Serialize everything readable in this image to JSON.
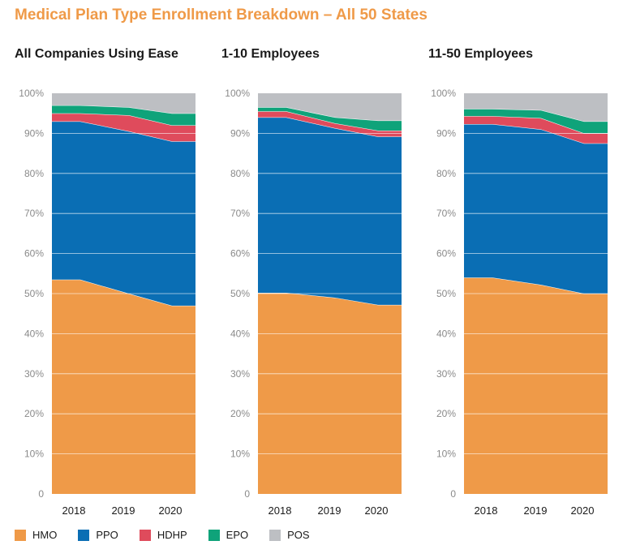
{
  "title": "Medical Plan Type Enrollment Breakdown – All 50 States",
  "series_colors": {
    "HMO": "#EF9A48",
    "PPO": "#0A6EB4",
    "HDHP": "#DF4B5C",
    "EPO": "#0FA37A",
    "POS": "#BDBFC3"
  },
  "chart_data": [
    {
      "type": "area",
      "title": "All Companies Using Ease",
      "x": [
        "2018",
        "2019",
        "2020"
      ],
      "ylim": [
        0,
        100
      ],
      "yticks": [
        "0",
        "10%",
        "20%",
        "30%",
        "40%",
        "50%",
        "60%",
        "70%",
        "80%",
        "90%",
        "100%"
      ],
      "stacked": true,
      "series": [
        {
          "name": "HMO",
          "values": [
            53.5,
            50.0,
            47.0
          ]
        },
        {
          "name": "PPO",
          "values": [
            39.5,
            40.5,
            41.0
          ]
        },
        {
          "name": "HDHP",
          "values": [
            2.0,
            4.0,
            4.0
          ]
        },
        {
          "name": "EPO",
          "values": [
            2.0,
            2.0,
            3.0
          ]
        },
        {
          "name": "POS",
          "values": [
            3.0,
            3.5,
            5.0
          ]
        }
      ]
    },
    {
      "type": "area",
      "title": "1-10 Employees",
      "x": [
        "2018",
        "2019",
        "2020"
      ],
      "ylim": [
        0,
        100
      ],
      "yticks": [
        "0",
        "10%",
        "20%",
        "30%",
        "40%",
        "50%",
        "60%",
        "70%",
        "80%",
        "90%",
        "100%"
      ],
      "stacked": true,
      "series": [
        {
          "name": "HMO",
          "values": [
            50.2,
            49.0,
            47.2
          ]
        },
        {
          "name": "PPO",
          "values": [
            43.8,
            42.3,
            42.0
          ]
        },
        {
          "name": "HDHP",
          "values": [
            1.5,
            1.2,
            1.5
          ]
        },
        {
          "name": "EPO",
          "values": [
            1.0,
            1.5,
            2.5
          ]
        },
        {
          "name": "POS",
          "values": [
            3.5,
            6.0,
            6.8
          ]
        }
      ]
    },
    {
      "type": "area",
      "title": "11-50 Employees",
      "x": [
        "2018",
        "2019",
        "2020"
      ],
      "ylim": [
        0,
        100
      ],
      "yticks": [
        "0",
        "10%",
        "20%",
        "30%",
        "40%",
        "50%",
        "60%",
        "70%",
        "80%",
        "90%",
        "100%"
      ],
      "stacked": true,
      "series": [
        {
          "name": "HMO",
          "values": [
            54.0,
            52.2,
            50.0
          ]
        },
        {
          "name": "PPO",
          "values": [
            38.3,
            38.8,
            37.5
          ]
        },
        {
          "name": "HDHP",
          "values": [
            2.0,
            2.8,
            2.5
          ]
        },
        {
          "name": "EPO",
          "values": [
            1.8,
            2.0,
            3.0
          ]
        },
        {
          "name": "POS",
          "values": [
            3.9,
            4.2,
            7.0
          ]
        }
      ]
    }
  ]
}
